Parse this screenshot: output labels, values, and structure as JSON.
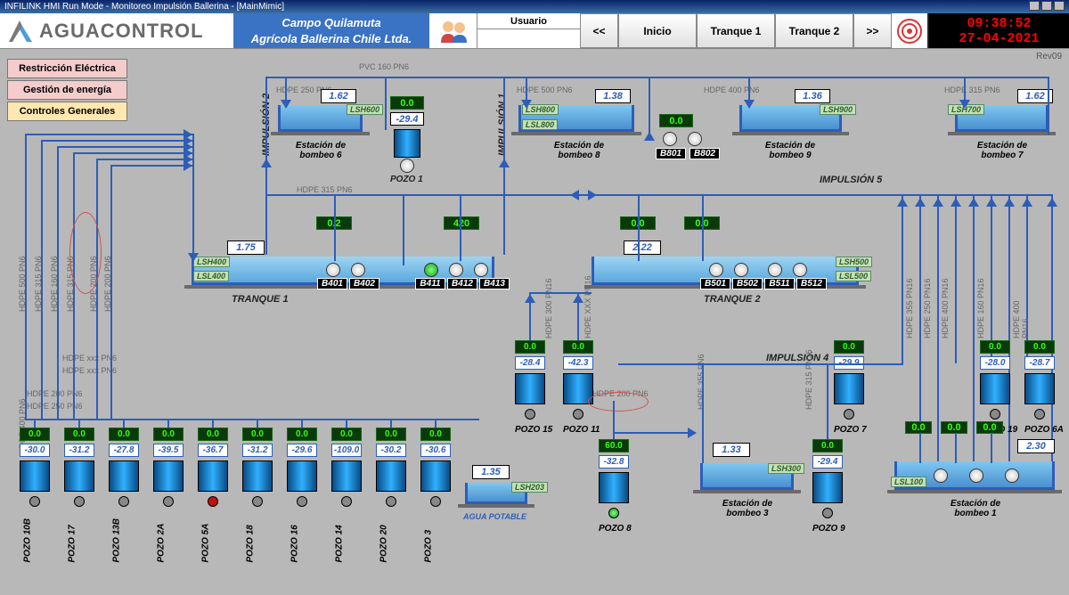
{
  "window": {
    "title": "INFILINK HMI Run Mode - Monitoreo Impulsión Ballerina - [MainMimic]"
  },
  "header": {
    "logo_text": "AGUACONTROL",
    "campo_l1": "Campo Quilamuta",
    "campo_l2": "Agrícola Ballerina Chile Ltda.",
    "usuario_hdr": "Usuario",
    "nav": {
      "prev": "<<",
      "inicio": "Inicio",
      "tranque1": "Tranque 1",
      "tranque2": "Tranque 2",
      "next": ">>"
    },
    "clock": {
      "time": "09:38:52",
      "date": "27-04-2021"
    },
    "rev": "Rev09"
  },
  "side": {
    "btn1": {
      "label": "Restricción Eléctrica",
      "bg": "#f4cccc"
    },
    "btn2": {
      "label": "Gestión de energía",
      "bg": "#f4cccc"
    },
    "btn3": {
      "label": "Controles Generales",
      "bg": "#ffe8b0"
    }
  },
  "pipes": {
    "pvc160": "PVC 160 PN6",
    "h250": "HDPE 250 PN6",
    "h500": "HDPE 500 PN6",
    "h400": "HDPE 400 PN6",
    "h315": "HDPE 315 PN6",
    "hxxx": "HDPE xxx PN6",
    "h200": "HDPE 200 PN6",
    "h355": "HDPE 355 PN6",
    "h160": "HDPE 160 PN6",
    "hxxxpn16": "HDPE XXX PN16",
    "h300pn16": "HDPE 300 PN16",
    "h355pn16": "HDPE 355 PN16",
    "h250pn16": "HDPE 250 PN16",
    "h400pn16": "HDPE 400 PN16",
    "h160pn16": "HDPE 160 PN16",
    "h315pn16": "HDPE 315 PN16"
  },
  "imp": {
    "1": "IMPULSIÓN 1",
    "2": "IMPULSIÓN 2",
    "4": "IMPULSIÓN 4",
    "5": "IMPULSIÓN 5"
  },
  "stations": {
    "6": {
      "label": "Estación de\nbombeo 6",
      "level": "1.62",
      "pipe": "HDPE 250 PN6",
      "lsh": "LSH600"
    },
    "8": {
      "label": "Estación de\nbombeo 8",
      "level": "1.38",
      "pipe": "HDPE 500 PN6",
      "lsh": "LSH800",
      "lsl": "LSL800"
    },
    "9": {
      "label": "Estación de\nbombeo 9",
      "level": "1.36",
      "pipe": "HDPE 400 PN6",
      "lsh": "LSH900"
    },
    "7": {
      "label": "Estación de\nbombeo 7",
      "level": "1.62",
      "pipe": "HDPE 315 PN6",
      "lsh": "LSH700"
    },
    "3": {
      "label": "Estación de\nbombeo 3",
      "level": "1.33",
      "lsh": "LSH300"
    },
    "1": {
      "label": "Estación de\nbombeo 1",
      "level": "2.30",
      "lsl": "LSL100"
    }
  },
  "midpumps": {
    "b801": "B801",
    "b802": "B802",
    "b801_flow": "0.0"
  },
  "pozo1": {
    "label": "POZO 1",
    "flow": "0.0",
    "level": "-29.4"
  },
  "tranques": {
    "t1": {
      "label": "TRANQUE 1",
      "level": "1.75",
      "flow": "0.2",
      "lsh": "LSH400",
      "lsl": "LSL400",
      "p401": "B401",
      "p402": "B402",
      "p411": "B411",
      "p412": "B412",
      "p413": "B413",
      "flow2": "420"
    },
    "t2": {
      "label": "TRANQUE 2",
      "level": "2.22",
      "flow": "0.0",
      "flow2": "0.0",
      "lsh": "LSH500",
      "lsl": "LSL500",
      "p501": "B501",
      "p502": "B502",
      "p511": "B511",
      "p512": "B512"
    }
  },
  "pozos_mid": {
    "p15": {
      "label": "POZO 15",
      "flow": "0.0",
      "level": "-28.4"
    },
    "p11": {
      "label": "POZO 11",
      "flow": "0.0",
      "level": "-42.3"
    },
    "p7": {
      "label": "POZO 7",
      "flow": "0.0",
      "level": "-29.9"
    },
    "p19": {
      "label": "POZO 19",
      "flow": "0.0",
      "level": "-28.0"
    },
    "p6a": {
      "label": "POZO 6A",
      "flow": "0.0",
      "level": "-28.7"
    },
    "p8": {
      "label": "POZO 8",
      "flow": "60.0",
      "level": "-32.8",
      "color": "#1a9a1a"
    },
    "p9": {
      "label": "POZO 9",
      "flow": "0.0",
      "level": "-29.4"
    }
  },
  "station1_flows": {
    "a": "0.0",
    "b": "0.0",
    "c": "0.0"
  },
  "pozos_bot": [
    {
      "label": "POZO 10B",
      "flow": "0.0",
      "level": "-30.0",
      "color": "#888"
    },
    {
      "label": "POZO 17",
      "flow": "0.0",
      "level": "-31.2",
      "color": "#888"
    },
    {
      "label": "POZO 13B",
      "flow": "0.0",
      "level": "-27.8",
      "color": "#888"
    },
    {
      "label": "POZO 2A",
      "flow": "0.0",
      "level": "-39.5",
      "color": "#888"
    },
    {
      "label": "POZO 5A",
      "flow": "0.0",
      "level": "-36.7",
      "color": "#c01010"
    },
    {
      "label": "POZO 18",
      "flow": "0.0",
      "level": "-31.2",
      "color": "#888"
    },
    {
      "label": "POZO 16",
      "flow": "0.0",
      "level": "-29.6",
      "color": "#888"
    },
    {
      "label": "POZO 14",
      "flow": "0.0",
      "level": "-109.0",
      "color": "#888"
    },
    {
      "label": "POZO 20",
      "flow": "0.0",
      "level": "-30.2",
      "color": "#888"
    },
    {
      "label": "POZO 3",
      "flow": "0.0",
      "level": "-30.6",
      "color": "#888"
    }
  ],
  "agua": {
    "label": "AGUA POTABLE",
    "level": "1.35",
    "lsh": "LSH203"
  }
}
